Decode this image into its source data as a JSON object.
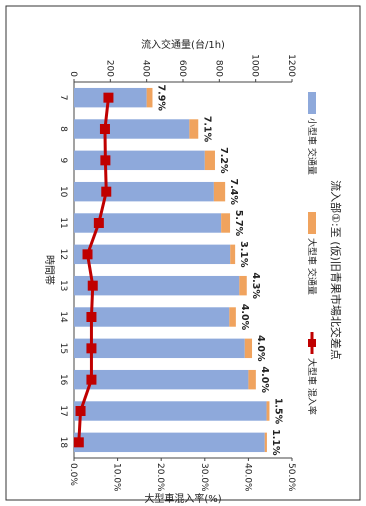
{
  "chart_data": {
    "type": "bar",
    "title": "流入部①:至 (仮)旧青果市場北交差点",
    "xlabel": "時間帯",
    "ylabel": "流入交通量(台/1h)",
    "y2label": "大型車混入率(%)",
    "categories": [
      "7",
      "8",
      "9",
      "10",
      "11",
      "12",
      "13",
      "14",
      "15",
      "16",
      "17",
      "18"
    ],
    "series": [
      {
        "name": "小型車 交通量",
        "type": "bar",
        "color": "#8ea9db",
        "values": [
          400,
          635,
          720,
          770,
          810,
          860,
          910,
          855,
          940,
          960,
          1060,
          1050
        ]
      },
      {
        "name": "大型車 交通量",
        "type": "bar",
        "color": "#f0a35e",
        "values": [
          32,
          49,
          56,
          62,
          49,
          27,
          41,
          36,
          40,
          41,
          16,
          12
        ]
      },
      {
        "name": "大型車 混入率",
        "type": "line",
        "color": "#c00000",
        "values": [
          7.9,
          7.1,
          7.2,
          7.4,
          5.7,
          3.1,
          4.3,
          4.0,
          4.0,
          4.0,
          1.5,
          1.1
        ]
      }
    ],
    "data_labels": [
      "7.9%",
      "7.1%",
      "7.2%",
      "7.4%",
      "5.7%",
      "3.1%",
      "4.3%",
      "4.0%",
      "4.0%",
      "4.0%",
      "1.5%",
      "1.1%"
    ],
    "ylim": [
      0,
      1200
    ],
    "yticks": [
      "0",
      "200",
      "400",
      "600",
      "800",
      "1000",
      "1200"
    ],
    "y2lim": [
      0,
      50
    ],
    "y2ticks": [
      "0.0%",
      "10.0%",
      "20.0%",
      "30.0%",
      "40.0%",
      "50.0%"
    ],
    "grid": false,
    "legend": "top"
  }
}
